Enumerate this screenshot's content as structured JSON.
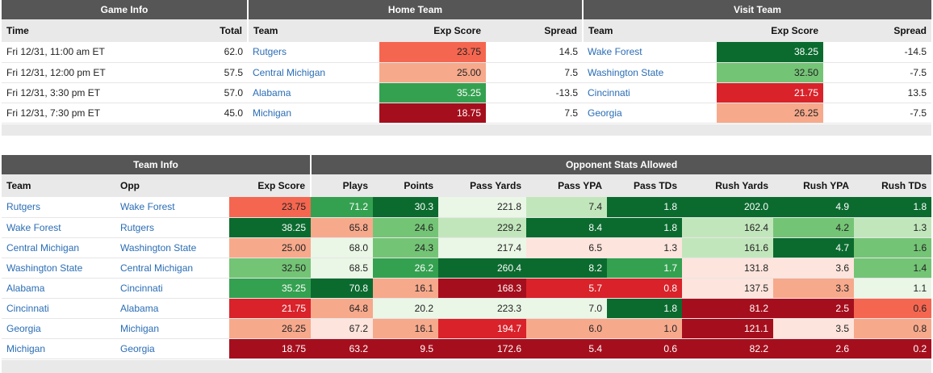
{
  "top_table": {
    "groups": [
      "Game Info",
      "Home Team",
      "Visit Team"
    ],
    "headers": [
      "Time",
      "Total",
      "Team",
      "Exp Score",
      "Spread",
      "Team",
      "Exp Score",
      "Spread"
    ],
    "rows": [
      {
        "time": "Fri 12/31, 11:00 am ET",
        "total": "62.0",
        "home": "Rutgers",
        "home_exp": "23.75",
        "home_spread": "14.5",
        "visit": "Wake Forest",
        "visit_exp": "38.25",
        "visit_spread": "-14.5"
      },
      {
        "time": "Fri 12/31, 12:00 pm ET",
        "total": "57.5",
        "home": "Central Michigan",
        "home_exp": "25.00",
        "home_spread": "7.5",
        "visit": "Washington State",
        "visit_exp": "32.50",
        "visit_spread": "-7.5"
      },
      {
        "time": "Fri 12/31, 3:30 pm ET",
        "total": "57.0",
        "home": "Alabama",
        "home_exp": "35.25",
        "home_spread": "-13.5",
        "visit": "Cincinnati",
        "visit_exp": "21.75",
        "visit_spread": "13.5"
      },
      {
        "time": "Fri 12/31, 7:30 pm ET",
        "total": "45.0",
        "home": "Michigan",
        "home_exp": "18.75",
        "home_spread": "7.5",
        "visit": "Georgia",
        "visit_exp": "26.25",
        "visit_spread": "-7.5"
      }
    ]
  },
  "bottom_table": {
    "groups": [
      "Team Info",
      "Opponent Stats Allowed"
    ],
    "headers": [
      "Team",
      "Opp",
      "Exp Score",
      "Plays",
      "Points",
      "Pass Yards",
      "Pass YPA",
      "Pass TDs",
      "Rush Yards",
      "Rush YPA",
      "Rush TDs"
    ],
    "rows": [
      {
        "team": "Rutgers",
        "opp": "Wake Forest",
        "vals": [
          "23.75",
          "71.2",
          "30.3",
          "221.8",
          "7.4",
          "1.8",
          "202.0",
          "4.9",
          "1.8"
        ]
      },
      {
        "team": "Wake Forest",
        "opp": "Rutgers",
        "vals": [
          "38.25",
          "65.8",
          "24.6",
          "229.2",
          "8.4",
          "1.8",
          "162.4",
          "4.2",
          "1.3"
        ]
      },
      {
        "team": "Central Michigan",
        "opp": "Washington State",
        "vals": [
          "25.00",
          "68.0",
          "24.3",
          "217.4",
          "6.5",
          "1.3",
          "161.6",
          "4.7",
          "1.6"
        ]
      },
      {
        "team": "Washington State",
        "opp": "Central Michigan",
        "vals": [
          "32.50",
          "68.5",
          "26.2",
          "260.4",
          "8.2",
          "1.7",
          "131.8",
          "3.6",
          "1.4"
        ]
      },
      {
        "team": "Alabama",
        "opp": "Cincinnati",
        "vals": [
          "35.25",
          "70.8",
          "16.1",
          "168.3",
          "5.7",
          "0.8",
          "137.5",
          "3.3",
          "1.1"
        ]
      },
      {
        "team": "Cincinnati",
        "opp": "Alabama",
        "vals": [
          "21.75",
          "64.8",
          "20.2",
          "223.3",
          "7.0",
          "1.8",
          "81.2",
          "2.5",
          "0.6"
        ]
      },
      {
        "team": "Georgia",
        "opp": "Michigan",
        "vals": [
          "26.25",
          "67.2",
          "16.1",
          "194.7",
          "6.0",
          "1.0",
          "121.1",
          "3.5",
          "0.8"
        ]
      },
      {
        "team": "Michigan",
        "opp": "Georgia",
        "vals": [
          "18.75",
          "63.2",
          "9.5",
          "172.6",
          "5.4",
          "0.6",
          "82.2",
          "2.6",
          "0.2"
        ]
      }
    ]
  },
  "colors": {
    "dk_green": "#0b6b2f",
    "green": "#34a150",
    "mid_green": "#74c476",
    "lt_green": "#c2e6bc",
    "pale_green": "#eaf6e6",
    "pale_red": "#fde4dc",
    "lt_red": "#f7a98c",
    "red": "#f56650",
    "dk_red": "#d9222a",
    "crimson": "#a50f1d"
  },
  "top_cell_colors": [
    [
      "red",
      "dk_green"
    ],
    [
      "lt_red",
      "mid_green"
    ],
    [
      "green",
      "dk_red"
    ],
    [
      "crimson",
      "lt_red"
    ]
  ],
  "bottom_cell_colors": [
    [
      "red",
      "green",
      "dk_green",
      "pale_green",
      "lt_green",
      "dk_green",
      "dk_green",
      "dk_green",
      "dk_green"
    ],
    [
      "dk_green",
      "lt_red",
      "mid_green",
      "lt_green",
      "dk_green",
      "dk_green",
      "lt_green",
      "mid_green",
      "lt_green"
    ],
    [
      "lt_red",
      "pale_green",
      "mid_green",
      "pale_green",
      "pale_red",
      "pale_red",
      "lt_green",
      "dk_green",
      "mid_green"
    ],
    [
      "mid_green",
      "pale_green",
      "green",
      "dk_green",
      "dk_green",
      "green",
      "pale_red",
      "pale_red",
      "mid_green"
    ],
    [
      "green",
      "dk_green",
      "lt_red",
      "crimson",
      "dk_red",
      "dk_red",
      "pale_red",
      "lt_red",
      "pale_green"
    ],
    [
      "dk_red",
      "lt_red",
      "pale_green",
      "pale_green",
      "pale_green",
      "dk_green",
      "crimson",
      "crimson",
      "red"
    ],
    [
      "lt_red",
      "pale_red",
      "lt_red",
      "dk_red",
      "lt_red",
      "lt_red",
      "crimson",
      "pale_red",
      "lt_red"
    ],
    [
      "crimson",
      "crimson",
      "crimson",
      "crimson",
      "crimson",
      "crimson",
      "crimson",
      "crimson",
      "crimson"
    ]
  ]
}
